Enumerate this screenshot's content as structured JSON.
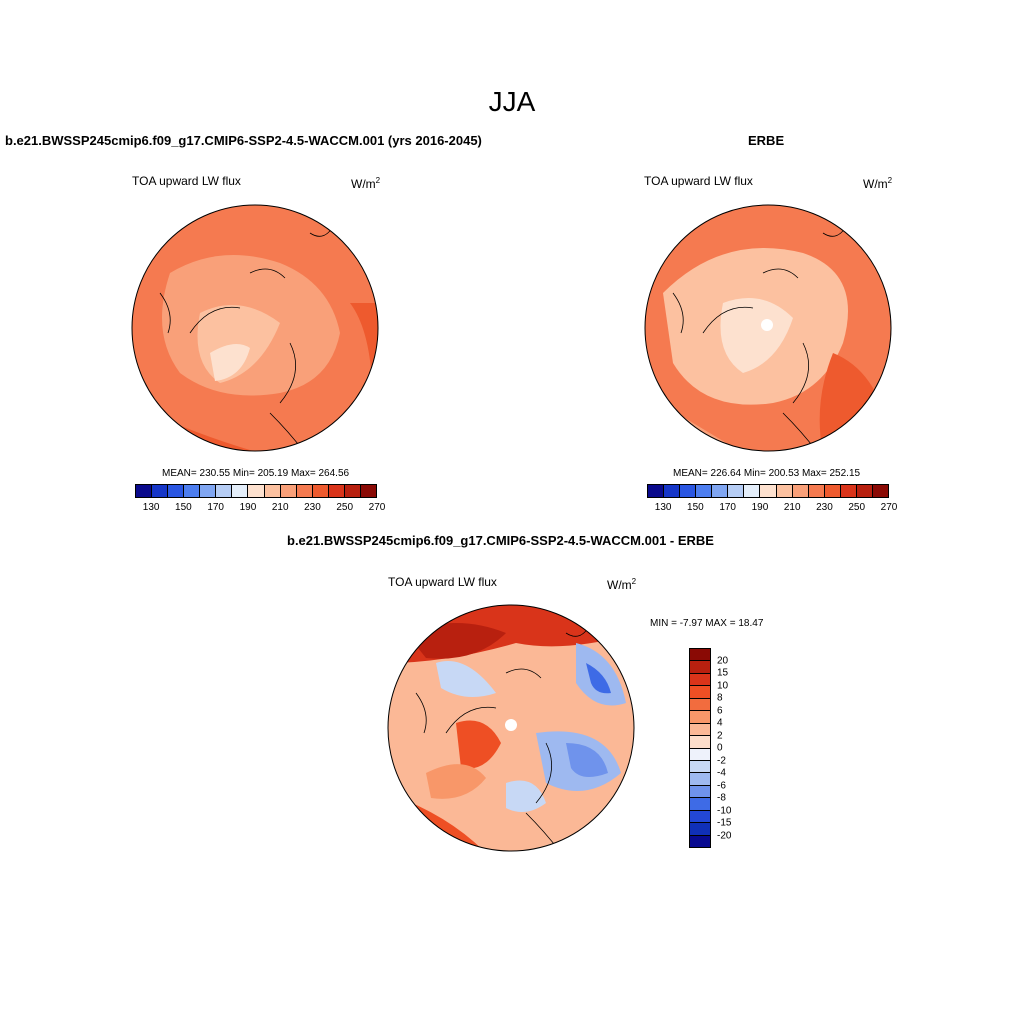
{
  "page": {
    "title": "JJA"
  },
  "colors": {
    "abs_scale": [
      "#0a0a8c",
      "#1636c8",
      "#2a56e2",
      "#4d7ef0",
      "#80a6f2",
      "#b6cdf5",
      "#e4eefa",
      "#fde1cf",
      "#fcc1a0",
      "#f9a079",
      "#f57a50",
      "#ee5a2e",
      "#d9341a",
      "#b8200f",
      "#8a0a05"
    ],
    "diff_scale": [
      "#8a0a05",
      "#b8200f",
      "#d9341a",
      "#ee4f24",
      "#f26c3e",
      "#f89769",
      "#fbb896",
      "#fcddca",
      "#eef2fb",
      "#c7d8f5",
      "#9eb9f0",
      "#6f93ec",
      "#3e6be6",
      "#2347d6",
      "#1030b8",
      "#080a90"
    ]
  },
  "panels": {
    "model": {
      "case": "b.e21.BWSSP245cmip6.f09_g17.CMIP6-SSP2-4.5-WACCM.001 (yrs 2016-2045)",
      "variable": "TOA upward LW flux",
      "units": "W/m",
      "units_sup": "2",
      "stats": "MEAN= 230.55  Min= 205.19  Max= 264.56",
      "ticks": [
        "130",
        "150",
        "170",
        "190",
        "210",
        "230",
        "250",
        "270"
      ]
    },
    "obs": {
      "case": "ERBE",
      "variable": "TOA upward LW flux",
      "units": "W/m",
      "units_sup": "2",
      "stats": "MEAN= 226.64  Min= 200.53  Max= 252.15",
      "ticks": [
        "130",
        "150",
        "170",
        "190",
        "210",
        "230",
        "250",
        "270"
      ]
    },
    "diff": {
      "case": "b.e21.BWSSP245cmip6.f09_g17.CMIP6-SSP2-4.5-WACCM.001 - ERBE",
      "variable": "TOA upward LW flux",
      "units": "W/m",
      "units_sup": "2",
      "stats": "MIN =  -7.97 MAX =  18.47",
      "ticks": [
        "20",
        "15",
        "10",
        "8",
        "6",
        "4",
        "2",
        "0",
        "-2",
        "-4",
        "-6",
        "-8",
        "-10",
        "-15",
        "-20"
      ]
    }
  }
}
